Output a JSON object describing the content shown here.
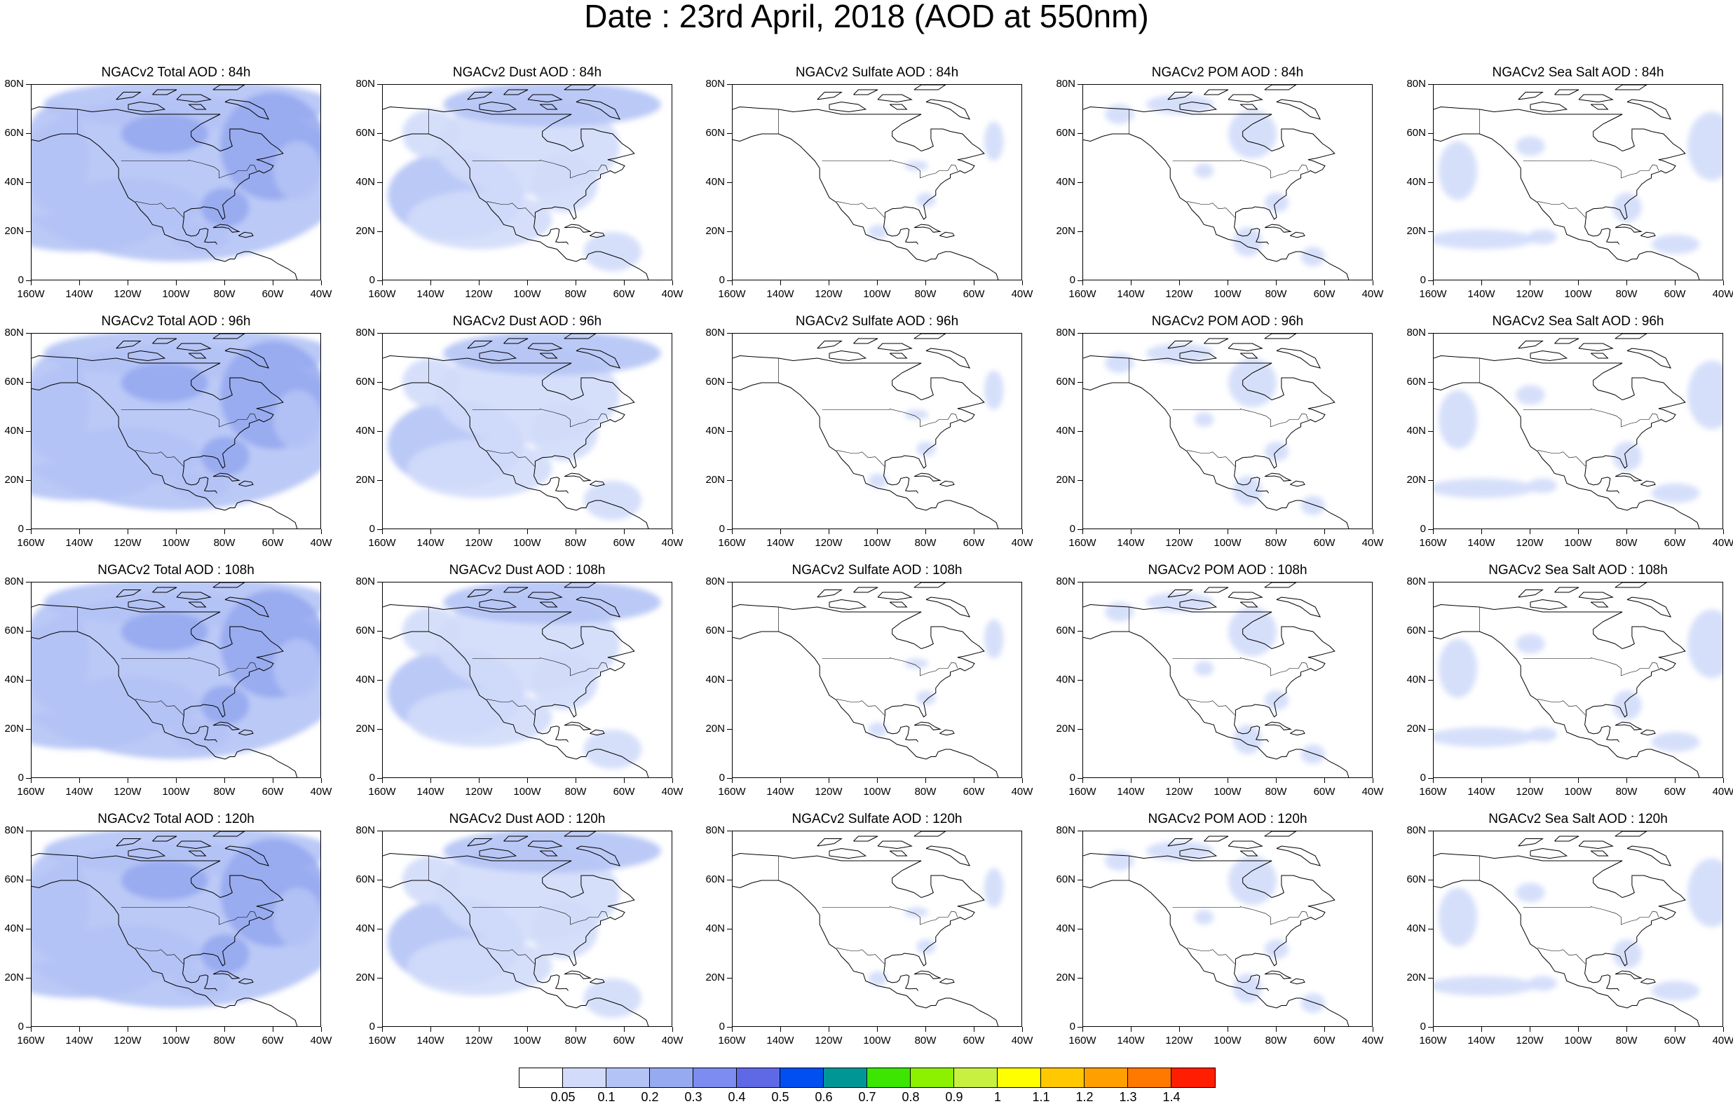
{
  "title": "Date : 23rd April, 2018 (AOD at 550nm)",
  "panels": [
    {
      "title": "NGACv2 Total AOD : 84h",
      "species": "total",
      "hour": 84
    },
    {
      "title": "NGACv2 Dust AOD : 84h",
      "species": "dust",
      "hour": 84
    },
    {
      "title": "NGACv2 Sulfate AOD : 84h",
      "species": "sulfate",
      "hour": 84
    },
    {
      "title": "NGACv2 POM AOD : 84h",
      "species": "pom",
      "hour": 84
    },
    {
      "title": "NGACv2 Sea Salt AOD : 84h",
      "species": "seasalt",
      "hour": 84
    },
    {
      "title": "NGACv2 Total AOD : 96h",
      "species": "total",
      "hour": 96
    },
    {
      "title": "NGACv2 Dust AOD : 96h",
      "species": "dust",
      "hour": 96
    },
    {
      "title": "NGACv2 Sulfate AOD : 96h",
      "species": "sulfate",
      "hour": 96
    },
    {
      "title": "NGACv2 POM AOD : 96h",
      "species": "pom",
      "hour": 96
    },
    {
      "title": "NGACv2 Sea Salt AOD : 96h",
      "species": "seasalt",
      "hour": 96
    },
    {
      "title": "NGACv2 Total AOD : 108h",
      "species": "total",
      "hour": 108
    },
    {
      "title": "NGACv2 Dust AOD : 108h",
      "species": "dust",
      "hour": 108
    },
    {
      "title": "NGACv2 Sulfate AOD : 108h",
      "species": "sulfate",
      "hour": 108
    },
    {
      "title": "NGACv2 POM AOD : 108h",
      "species": "pom",
      "hour": 108
    },
    {
      "title": "NGACv2 Sea Salt AOD : 108h",
      "species": "seasalt",
      "hour": 108
    },
    {
      "title": "NGACv2 Total AOD : 120h",
      "species": "total",
      "hour": 120
    },
    {
      "title": "NGACv2 Dust AOD : 120h",
      "species": "dust",
      "hour": 120
    },
    {
      "title": "NGACv2 Sulfate AOD : 120h",
      "species": "sulfate",
      "hour": 120
    },
    {
      "title": "NGACv2 POM AOD : 120h",
      "species": "pom",
      "hour": 120
    },
    {
      "title": "NGACv2 Sea Salt  AOD : 120h",
      "species": "seasalt",
      "hour": 120
    }
  ],
  "axes": {
    "lat_labels": [
      "80N",
      "60N",
      "40N",
      "20N",
      "0"
    ],
    "lat_values": [
      80,
      60,
      40,
      20,
      0
    ],
    "lon_labels": [
      "160W",
      "140W",
      "120W",
      "100W",
      "80W",
      "60W",
      "40W"
    ],
    "lon_values": [
      -160,
      -140,
      -120,
      -100,
      -80,
      -60,
      -40
    ],
    "lon_range": [
      -160,
      -40
    ],
    "lat_range": [
      0,
      80
    ]
  },
  "colorbar": {
    "colors": [
      "#ffffff",
      "#d2dcfa",
      "#b4c3f5",
      "#96aaf0",
      "#7d8cf0",
      "#5f69e6",
      "#0050f0",
      "#009696",
      "#3ce600",
      "#8cf000",
      "#c8f041",
      "#ffff00",
      "#ffc800",
      "#ffa000",
      "#ff7800",
      "#ff1e00"
    ],
    "labels": [
      "0.05",
      "0.1",
      "0.2",
      "0.3",
      "0.4",
      "0.5",
      "0.6",
      "0.7",
      "0.8",
      "0.9",
      "1",
      "1.1",
      "1.2",
      "1.3",
      "1.4"
    ]
  }
}
